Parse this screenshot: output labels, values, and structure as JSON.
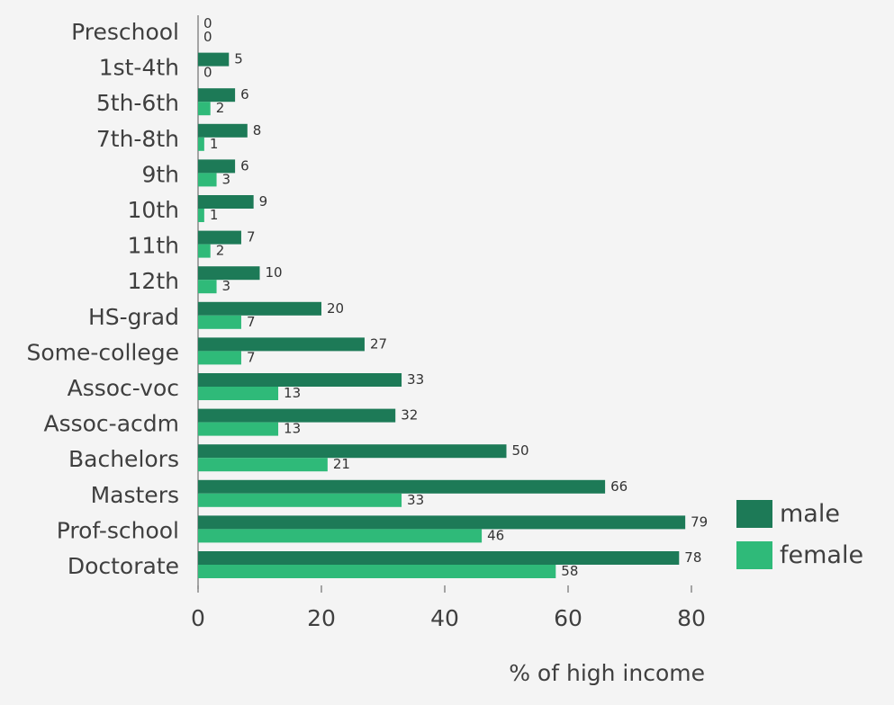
{
  "chart_data": {
    "type": "bar",
    "orientation": "horizontal",
    "categories": [
      "Preschool",
      "1st-4th",
      "5th-6th",
      "7th-8th",
      "9th",
      "10th",
      "11th",
      "12th",
      "HS-grad",
      "Some-college",
      "Assoc-voc",
      "Assoc-acdm",
      "Bachelors",
      "Masters",
      "Prof-school",
      "Doctorate"
    ],
    "series": [
      {
        "name": "male",
        "color": "#1d7a57",
        "values": [
          0,
          5,
          6,
          8,
          6,
          9,
          7,
          10,
          20,
          27,
          33,
          32,
          50,
          66,
          79,
          78
        ]
      },
      {
        "name": "female",
        "color": "#2fba79",
        "values": [
          0,
          0,
          2,
          1,
          3,
          1,
          2,
          3,
          7,
          7,
          13,
          13,
          21,
          33,
          46,
          58
        ]
      }
    ],
    "xlabel": "% of high income",
    "ylabel": "",
    "xlim": [
      0,
      80
    ],
    "xticks": [
      0,
      20,
      40,
      60,
      80
    ],
    "grid": false,
    "legend_position": "bottom-right",
    "background": "#f4f4f4"
  }
}
